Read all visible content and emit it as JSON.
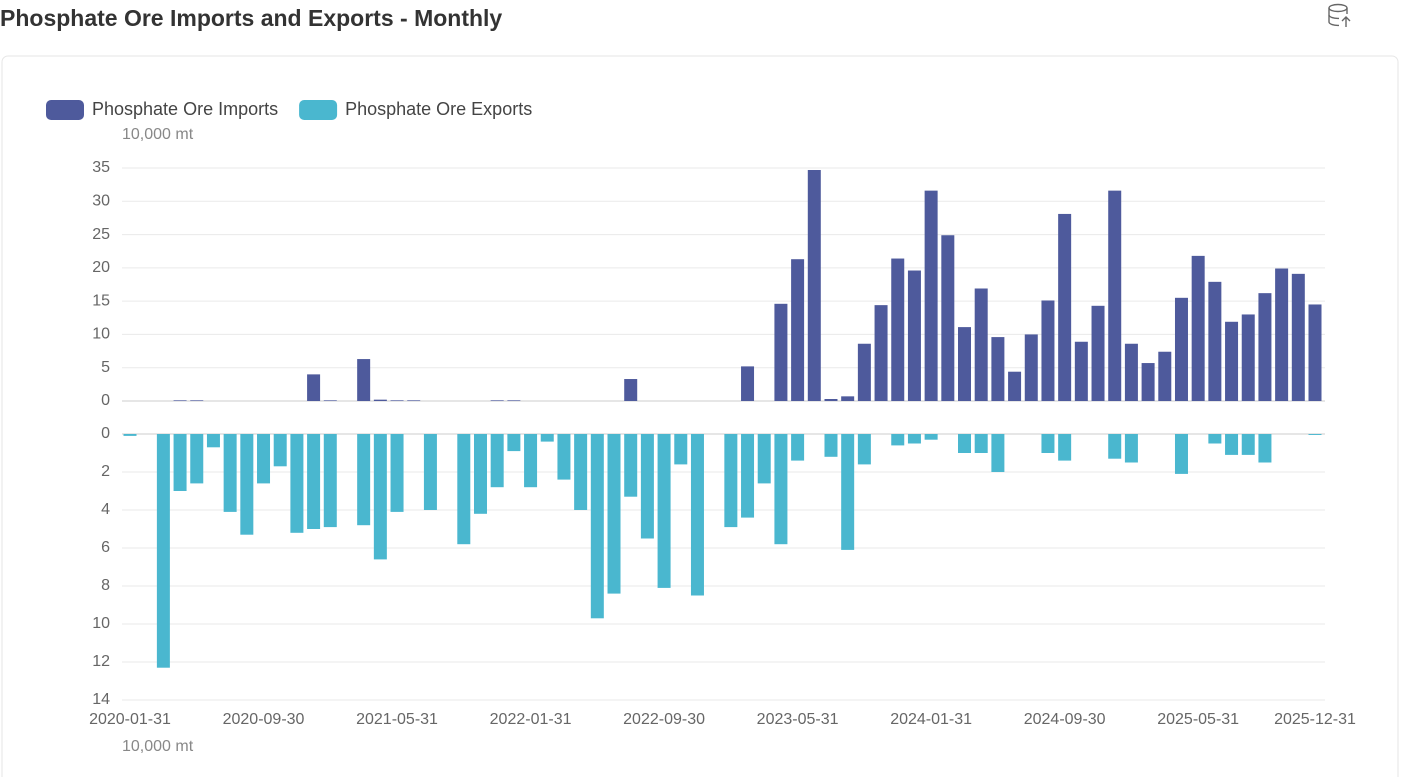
{
  "chart_data": {
    "type": "bar",
    "title": "Phosphate Ore Imports and Exports - Monthly",
    "y_unit": "10,000 mt",
    "y2_unit": "10,000 mt",
    "y2_inverted": true,
    "categories": [
      "2020-01-31",
      null,
      null,
      null,
      null,
      null,
      null,
      null,
      "2020-09-30",
      null,
      null,
      null,
      null,
      null,
      null,
      null,
      "2021-05-31",
      null,
      null,
      null,
      null,
      null,
      null,
      null,
      "2022-01-31",
      null,
      null,
      null,
      null,
      null,
      null,
      null,
      "2022-09-30",
      null,
      null,
      null,
      null,
      null,
      null,
      null,
      "2023-05-31",
      null,
      null,
      null,
      null,
      null,
      null,
      null,
      "2024-01-31",
      null,
      null,
      null,
      null,
      null,
      null,
      null,
      "2024-09-30",
      null,
      null,
      null,
      null,
      null,
      null,
      null,
      "2025-05-31",
      null,
      null,
      null,
      null,
      null,
      null,
      "2025-12-31"
    ],
    "series": [
      {
        "name": "Phosphate Ore Imports",
        "color": "#4e5a9c",
        "axis": "y",
        "values": [
          0,
          0,
          0,
          0.1,
          0.1,
          0,
          0,
          0,
          0,
          0,
          0,
          4.0,
          0.1,
          0,
          6.3,
          0.2,
          0.1,
          0.1,
          0,
          0,
          0,
          0,
          0.1,
          0.1,
          0,
          0,
          0,
          0,
          0,
          0,
          3.3,
          0,
          0,
          0,
          0,
          0,
          0,
          5.2,
          0,
          14.6,
          21.3,
          34.7,
          0.3,
          0.7,
          8.6,
          14.4,
          21.4,
          19.6,
          31.6,
          24.9,
          11.1,
          16.9,
          9.6,
          4.4,
          10.0,
          15.1,
          28.1,
          8.9,
          14.3,
          31.6,
          8.6,
          5.7,
          7.4,
          15.5,
          21.8,
          17.9,
          11.9,
          13.0,
          16.2,
          19.9,
          19.1,
          14.5
        ]
      },
      {
        "name": "Phosphate Ore Exports",
        "color": "#4ab7cf",
        "axis": "y2",
        "values": [
          0.1,
          0,
          12.3,
          3.0,
          2.6,
          0.7,
          4.1,
          5.3,
          2.6,
          1.7,
          5.2,
          5.0,
          4.9,
          0,
          4.8,
          6.6,
          4.1,
          0,
          4.0,
          0,
          5.8,
          4.2,
          2.8,
          0.9,
          2.8,
          0.4,
          2.4,
          4.0,
          9.7,
          8.4,
          3.3,
          5.5,
          8.1,
          1.6,
          8.5,
          0,
          4.9,
          4.4,
          2.6,
          5.8,
          1.4,
          0,
          1.2,
          6.1,
          1.6,
          0,
          0.6,
          0.5,
          0.3,
          0,
          1.0,
          1.0,
          2.0,
          0,
          0,
          1.0,
          1.4,
          0,
          0,
          1.3,
          1.5,
          0,
          0,
          2.1,
          0,
          0.5,
          1.1,
          1.1,
          1.5,
          0,
          0,
          0.05
        ]
      }
    ],
    "ylim": [
      0,
      35
    ],
    "yticks": [
      0,
      5,
      10,
      15,
      20,
      25,
      30,
      35
    ],
    "y2lim": [
      0,
      14
    ],
    "y2ticks": [
      0,
      2,
      4,
      6,
      8,
      10,
      12,
      14
    ],
    "grid": true,
    "legend": "top-left"
  }
}
